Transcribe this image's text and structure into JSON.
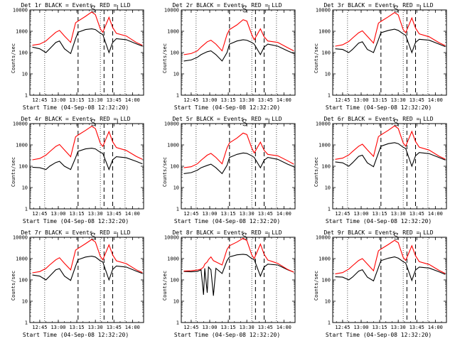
{
  "figure": {
    "ylabel": "Counts/sec",
    "xlabel": "Start Time (04-Sep-08 12:32:20)",
    "x_ticks": [
      "12:45",
      "13:00",
      "13:15",
      "13:30",
      "13:45",
      "14:00"
    ],
    "y_ticks": [
      "1",
      "10",
      "100",
      "1000",
      "10000"
    ],
    "colors": {
      "events": "#000000",
      "lld": "#ff0000",
      "axes": "#000000"
    }
  },
  "chart_data": [
    {
      "type": "line",
      "title": "Det 1r BLACK = Events, RED = LLD",
      "xlabel": "Start Time (04-Sep-08 12:32:20)",
      "ylabel": "Counts/sec",
      "y_scale": "log",
      "ylim": [
        1,
        10000
      ],
      "x": [
        "12:39",
        "12:45",
        "12:50",
        "12:53",
        "12:58",
        "13:01",
        "13:05",
        "13:10",
        "13:14",
        "13:16",
        "13:22",
        "13:27",
        "13:30",
        "13:34",
        "13:36",
        "13:41",
        "13:44",
        "13:47",
        "13:55",
        "14:03",
        "14:08"
      ],
      "series": [
        {
          "name": "Events",
          "values": [
            180,
            150,
            100,
            150,
            300,
            350,
            150,
            90,
            450,
            900,
            1200,
            1300,
            1200,
            800,
            700,
            100,
            300,
            450,
            400,
            260,
            200
          ]
        },
        {
          "name": "LLD",
          "values": [
            220,
            250,
            350,
            500,
            900,
            1100,
            600,
            300,
            2500,
            3000,
            5000,
            8000,
            6000,
            1300,
            900,
            4500,
            1500,
            800,
            600,
            300,
            220
          ]
        }
      ]
    },
    {
      "type": "line",
      "title": "Det 2r BLACK = Events, RED = LLD",
      "xlabel": "Start Time (04-Sep-08 12:32:20)",
      "ylabel": "Counts/sec",
      "y_scale": "log",
      "ylim": [
        1,
        10000
      ],
      "x": [
        "12:39",
        "12:45",
        "12:50",
        "12:53",
        "12:58",
        "13:01",
        "13:05",
        "13:10",
        "13:14",
        "13:16",
        "13:22",
        "13:27",
        "13:30",
        "13:34",
        "13:36",
        "13:41",
        "13:44",
        "13:47",
        "13:55",
        "14:03",
        "14:08"
      ],
      "series": [
        {
          "name": "Events",
          "values": [
            40,
            45,
            60,
            80,
            110,
            120,
            80,
            40,
            100,
            250,
            350,
            400,
            380,
            300,
            250,
            80,
            180,
            250,
            200,
            120,
            90
          ]
        },
        {
          "name": "LLD",
          "values": [
            80,
            90,
            120,
            180,
            320,
            380,
            250,
            120,
            700,
            1200,
            2000,
            3500,
            3000,
            700,
            400,
            1300,
            550,
            350,
            300,
            170,
            120
          ]
        }
      ]
    },
    {
      "type": "line",
      "title": "Det 3r BLACK = Events, RED = LLD",
      "xlabel": "Start Time (04-Sep-08 12:32:20)",
      "ylabel": "Counts/sec",
      "y_scale": "log",
      "ylim": [
        1,
        10000
      ],
      "x": [
        "12:39",
        "12:45",
        "12:50",
        "12:53",
        "12:58",
        "13:01",
        "13:05",
        "13:10",
        "13:14",
        "13:16",
        "13:22",
        "13:27",
        "13:30",
        "13:34",
        "13:36",
        "13:41",
        "13:44",
        "13:47",
        "13:55",
        "14:03",
        "14:08"
      ],
      "series": [
        {
          "name": "Events",
          "values": [
            150,
            140,
            100,
            140,
            280,
            320,
            140,
            100,
            400,
            850,
            1100,
            1250,
            1100,
            750,
            650,
            100,
            300,
            420,
            380,
            250,
            190
          ]
        },
        {
          "name": "LLD",
          "values": [
            200,
            230,
            330,
            480,
            850,
            1050,
            580,
            280,
            2400,
            2900,
            4800,
            7500,
            5800,
            1200,
            850,
            4200,
            1400,
            750,
            550,
            290,
            210
          ]
        }
      ]
    },
    {
      "type": "line",
      "title": "Det 4r BLACK = Events, RED = LLD",
      "xlabel": "Start Time (04-Sep-08 12:32:20)",
      "ylabel": "Counts/sec",
      "y_scale": "log",
      "ylim": [
        1,
        10000
      ],
      "x": [
        "12:39",
        "12:45",
        "12:50",
        "12:53",
        "12:58",
        "13:01",
        "13:05",
        "13:10",
        "13:14",
        "13:16",
        "13:22",
        "13:27",
        "13:30",
        "13:34",
        "13:36",
        "13:41",
        "13:44",
        "13:47",
        "13:55",
        "14:03",
        "14:08"
      ],
      "series": [
        {
          "name": "Events",
          "values": [
            90,
            85,
            70,
            100,
            150,
            170,
            100,
            70,
            250,
            500,
            650,
            700,
            650,
            450,
            400,
            70,
            200,
            280,
            250,
            170,
            130
          ]
        },
        {
          "name": "LLD",
          "values": [
            200,
            230,
            330,
            480,
            850,
            1050,
            580,
            280,
            2400,
            2900,
            4800,
            7500,
            5800,
            1200,
            850,
            4200,
            1400,
            750,
            550,
            290,
            210
          ]
        }
      ]
    },
    {
      "type": "line",
      "title": "Det 5r BLACK = Events, RED = LLD",
      "xlabel": "Start Time (04-Sep-08 12:32:20)",
      "ylabel": "Counts/sec",
      "y_scale": "log",
      "ylim": [
        1,
        10000
      ],
      "x": [
        "12:39",
        "12:45",
        "12:50",
        "12:53",
        "12:58",
        "13:01",
        "13:05",
        "13:10",
        "13:14",
        "13:16",
        "13:22",
        "13:27",
        "13:30",
        "13:34",
        "13:36",
        "13:41",
        "13:44",
        "13:47",
        "13:55",
        "14:03",
        "14:08"
      ],
      "series": [
        {
          "name": "Events",
          "values": [
            45,
            50,
            65,
            85,
            110,
            125,
            85,
            45,
            110,
            260,
            360,
            420,
            400,
            310,
            260,
            85,
            190,
            260,
            210,
            125,
            95
          ]
        },
        {
          "name": "LLD",
          "values": [
            85,
            95,
            130,
            190,
            330,
            400,
            260,
            130,
            720,
            1250,
            2100,
            3600,
            3100,
            720,
            420,
            1350,
            560,
            360,
            310,
            180,
            125
          ]
        }
      ]
    },
    {
      "type": "line",
      "title": "Det 6r BLACK = Events, RED = LLD",
      "xlabel": "Start Time (04-Sep-08 12:32:20)",
      "ylabel": "Counts/sec",
      "y_scale": "log",
      "ylim": [
        1,
        10000
      ],
      "x": [
        "12:39",
        "12:45",
        "12:50",
        "12:53",
        "12:58",
        "13:01",
        "13:05",
        "13:10",
        "13:14",
        "13:16",
        "13:22",
        "13:27",
        "13:30",
        "13:34",
        "13:36",
        "13:41",
        "13:44",
        "13:47",
        "13:55",
        "14:03",
        "14:08"
      ],
      "series": [
        {
          "name": "Events",
          "values": [
            160,
            145,
            100,
            145,
            290,
            330,
            145,
            95,
            420,
            870,
            1150,
            1280,
            1150,
            780,
            680,
            100,
            310,
            440,
            390,
            255,
            195
          ]
        },
        {
          "name": "LLD",
          "values": [
            210,
            240,
            340,
            490,
            870,
            1080,
            590,
            290,
            2450,
            2950,
            4900,
            7800,
            5900,
            1250,
            870,
            4300,
            1450,
            780,
            570,
            295,
            215
          ]
        }
      ]
    },
    {
      "type": "line",
      "title": "Det 7r BLACK = Events, RED = LLD",
      "xlabel": "Start Time (04-Sep-08 12:32:20)",
      "ylabel": "Counts/sec",
      "y_scale": "log",
      "ylim": [
        1,
        10000
      ],
      "x": [
        "12:39",
        "12:45",
        "12:50",
        "12:53",
        "12:58",
        "13:01",
        "13:05",
        "13:10",
        "13:14",
        "13:16",
        "13:22",
        "13:27",
        "13:30",
        "13:34",
        "13:36",
        "13:41",
        "13:44",
        "13:47",
        "13:55",
        "14:03",
        "14:08"
      ],
      "series": [
        {
          "name": "Events",
          "values": [
            170,
            150,
            100,
            150,
            300,
            340,
            150,
            95,
            440,
            890,
            1180,
            1300,
            1180,
            790,
            690,
            100,
            310,
            450,
            400,
            260,
            200
          ]
        },
        {
          "name": "LLD",
          "values": [
            215,
            245,
            345,
            500,
            880,
            1100,
            600,
            295,
            2500,
            3000,
            5000,
            7900,
            6000,
            1280,
            880,
            4400,
            1480,
            790,
            580,
            300,
            220
          ]
        }
      ]
    },
    {
      "type": "line",
      "title": "Det 8r BLACK = Events, RED = LLD",
      "xlabel": "Start Time (04-Sep-08 12:32:20)",
      "ylabel": "Counts/sec",
      "y_scale": "log",
      "ylim": [
        1,
        10000
      ],
      "x": [
        "12:39",
        "12:45",
        "12:50",
        "12:53",
        "12:55",
        "12:56",
        "12:58",
        "12:59",
        "13:01",
        "13:03",
        "13:05",
        "13:10",
        "13:14",
        "13:16",
        "13:22",
        "13:27",
        "13:30",
        "13:34",
        "13:36",
        "13:41",
        "13:44",
        "13:47",
        "13:55",
        "14:03",
        "14:08"
      ],
      "series": [
        {
          "name": "Events",
          "values": [
            250,
            240,
            250,
            300,
            20,
            350,
            25,
            400,
            300,
            18,
            350,
            200,
            800,
            1200,
            1500,
            1600,
            1500,
            1000,
            900,
            150,
            400,
            550,
            500,
            300,
            230
          ]
        },
        {
          "name": "LLD",
          "values": [
            260,
            270,
            290,
            320,
            400,
            550,
            700,
            900,
            1200,
            800,
            700,
            500,
            2700,
            4000,
            6000,
            9000,
            7000,
            1500,
            1000,
            4800,
            1600,
            850,
            600,
            310,
            230
          ]
        }
      ]
    },
    {
      "type": "line",
      "title": "Det 9r BLACK = Events, RED = LLD",
      "xlabel": "Start Time (04-Sep-08 12:32:20)",
      "ylabel": "Counts/sec",
      "y_scale": "log",
      "ylim": [
        1,
        10000
      ],
      "x": [
        "12:39",
        "12:45",
        "12:50",
        "12:53",
        "12:58",
        "13:01",
        "13:05",
        "13:10",
        "13:14",
        "13:16",
        "13:22",
        "13:27",
        "13:30",
        "13:34",
        "13:36",
        "13:41",
        "13:44",
        "13:47",
        "13:55",
        "14:03",
        "14:08"
      ],
      "series": [
        {
          "name": "Events",
          "values": [
            140,
            135,
            100,
            135,
            260,
            300,
            135,
            90,
            380,
            800,
            1050,
            1200,
            1050,
            720,
            620,
            95,
            290,
            400,
            360,
            240,
            180
          ]
        },
        {
          "name": "LLD",
          "values": [
            190,
            220,
            320,
            460,
            820,
            1000,
            560,
            270,
            2300,
            2800,
            4600,
            7200,
            5600,
            1150,
            820,
            4000,
            1350,
            720,
            530,
            280,
            200
          ]
        }
      ]
    }
  ]
}
